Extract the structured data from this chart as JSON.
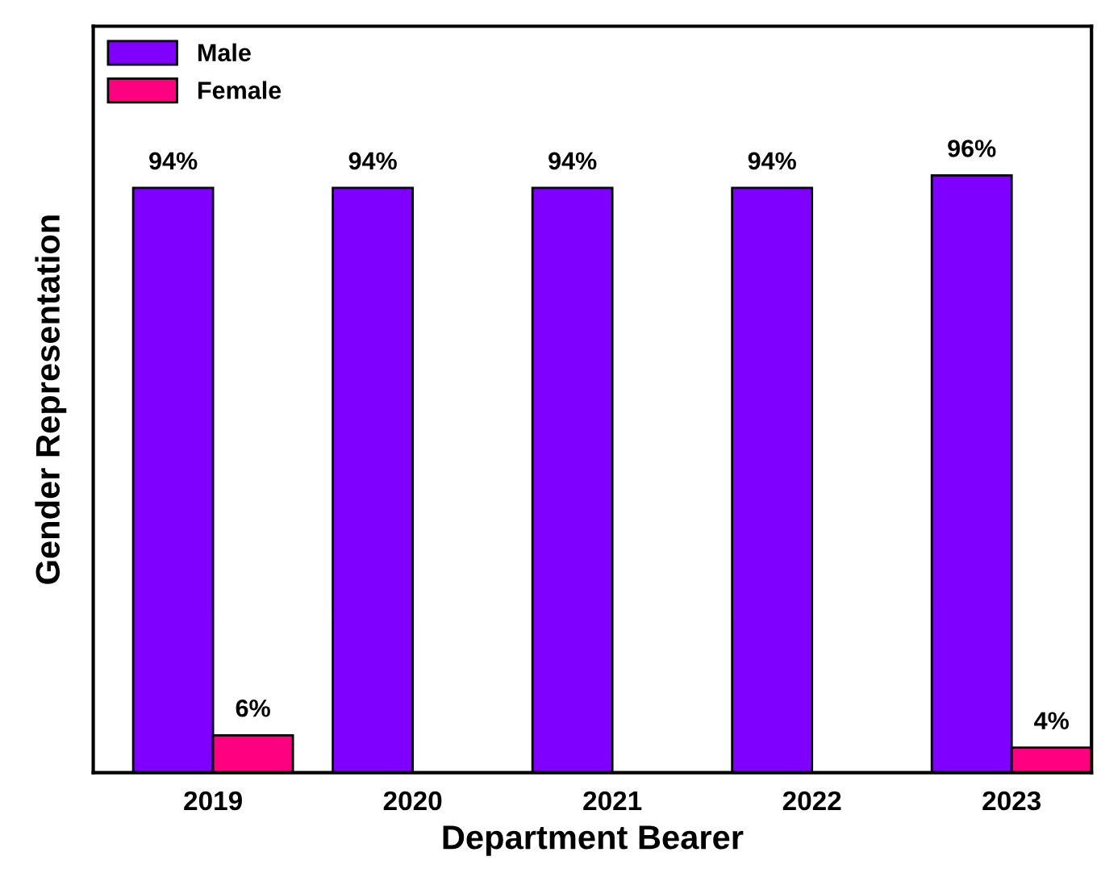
{
  "chart_data": {
    "type": "bar",
    "xlabel": "Department Bearer",
    "ylabel": "Gender Representation",
    "categories": [
      "2019",
      "2020",
      "2021",
      "2022",
      "2023"
    ],
    "series": [
      {
        "name": "Male",
        "color": "#7f00ff",
        "values": [
          94,
          94,
          94,
          94,
          96
        ],
        "value_labels": [
          "94%",
          "94%",
          "94%",
          "94%",
          "96%"
        ]
      },
      {
        "name": "Female",
        "color": "#ff0080",
        "values": [
          6,
          null,
          null,
          null,
          4
        ],
        "value_labels": [
          "6%",
          null,
          null,
          null,
          "4%"
        ]
      }
    ],
    "legend": "top left",
    "grid": false
  }
}
